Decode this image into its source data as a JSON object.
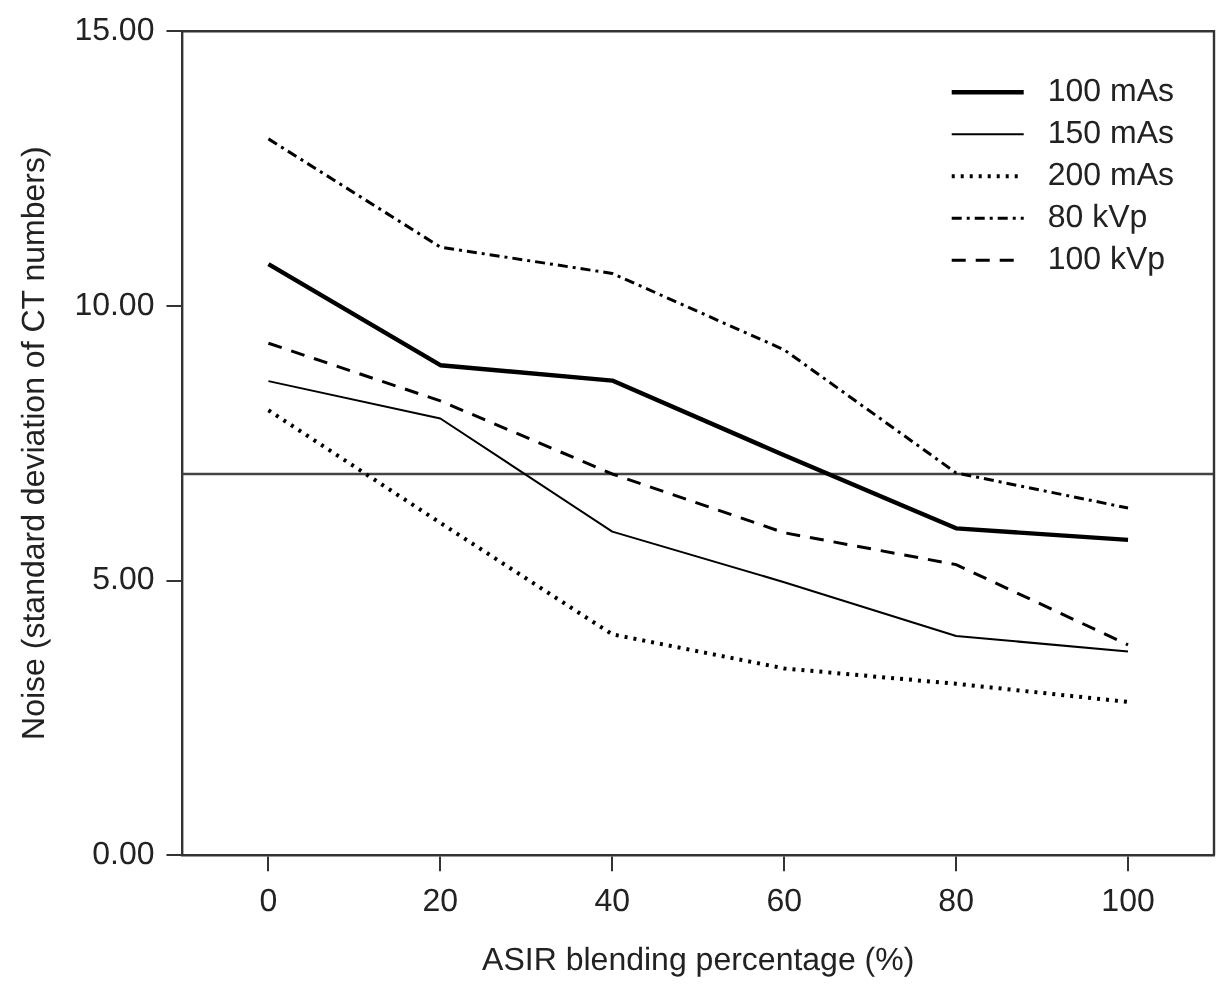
{
  "chart_data": {
    "type": "line",
    "xlabel": "ASIR blending percentage (%)",
    "ylabel": "Noise (standard deviation of CT numbers)",
    "x": [
      0,
      20,
      40,
      60,
      80,
      100
    ],
    "xlim": [
      -10,
      110
    ],
    "xticks": [
      0,
      20,
      40,
      60,
      80,
      100
    ],
    "ylim": [
      0,
      15
    ],
    "yticks": [
      {
        "value": 0,
        "label": "0.00"
      },
      {
        "value": 5,
        "label": "5.00"
      },
      {
        "value": 10,
        "label": "10.00"
      },
      {
        "value": 15,
        "label": "15.00"
      }
    ],
    "grid": false,
    "legend": "top right",
    "marker": "none",
    "ref_lines": [
      {
        "axis": "y",
        "value": 6.94,
        "color": "#444444",
        "line_style": "solid"
      }
    ],
    "series": [
      {
        "name": "100 mAs",
        "color": "#000000",
        "line_style": "solid",
        "values": [
          10.76,
          8.92,
          8.64,
          7.28,
          5.95,
          5.74
        ]
      },
      {
        "name": "150 mAs",
        "color": "#000000",
        "line_style": "solid",
        "values": [
          8.63,
          7.95,
          5.89,
          4.97,
          3.99,
          3.71
        ]
      },
      {
        "name": "200 mAs",
        "color": "#000000",
        "line_style": "dotted",
        "values": [
          8.1,
          6.05,
          4.02,
          3.4,
          3.12,
          2.79
        ]
      },
      {
        "name": "80 kVp",
        "color": "#000000",
        "line_style": "dashdot",
        "values": [
          13.04,
          11.07,
          10.59,
          9.2,
          6.96,
          6.32
        ]
      },
      {
        "name": "100 kVp",
        "color": "#000000",
        "line_style": "dashed",
        "values": [
          9.32,
          8.27,
          6.94,
          5.87,
          5.29,
          3.83
        ]
      }
    ]
  }
}
